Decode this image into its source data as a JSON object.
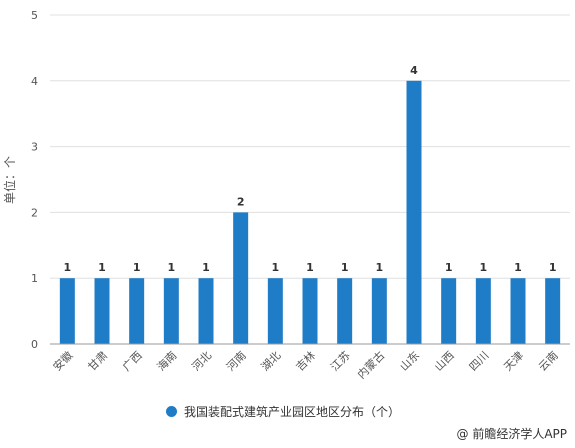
{
  "colors": {
    "bar": "#1f7cc6",
    "grid": "#e0e0e0",
    "axis": "#999999"
  },
  "chart_data": {
    "type": "bar",
    "title": "",
    "xlabel": "",
    "ylabel": "单位：个",
    "ylim": [
      0,
      5
    ],
    "yticks": [
      0,
      1,
      2,
      3,
      4,
      5
    ],
    "grid": true,
    "legend_position": "bottom",
    "categories": [
      "安徽",
      "甘肃",
      "广西",
      "海南",
      "河北",
      "河南",
      "湖北",
      "吉林",
      "江苏",
      "内蒙古",
      "山东",
      "山西",
      "四川",
      "天津",
      "云南"
    ],
    "series": [
      {
        "name": "我国装配式建筑产业园区地区分布（个）",
        "values": [
          1,
          1,
          1,
          1,
          1,
          2,
          1,
          1,
          1,
          1,
          4,
          1,
          1,
          1,
          1
        ]
      }
    ]
  },
  "credit": "@ 前瞻经济学人APP"
}
